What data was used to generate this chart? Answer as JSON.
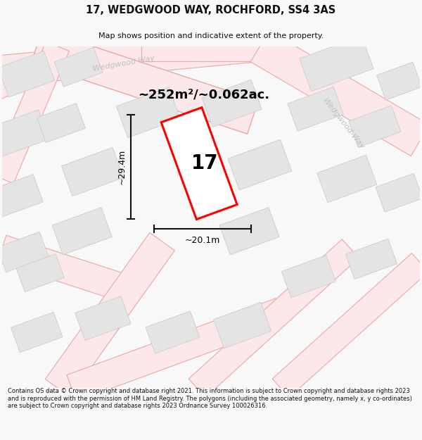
{
  "title": "17, WEDGWOOD WAY, ROCHFORD, SS4 3AS",
  "subtitle": "Map shows position and indicative extent of the property.",
  "area_text": "~252m²/~0.062ac.",
  "width_label": "~20.1m",
  "height_label": "~29.4m",
  "number_label": "17",
  "footer_text": "Contains OS data © Crown copyright and database right 2021. This information is subject to Crown copyright and database rights 2023 and is reproduced with the permission of HM Land Registry. The polygons (including the associated geometry, namely x, y co-ordinates) are subject to Crown copyright and database rights 2023 Ordnance Survey 100026316.",
  "bg_color": "#f8f8f8",
  "map_bg": "#ffffff",
  "road_fill": "#fce8e8",
  "road_edge": "#e8a8a8",
  "block_fill": "#e4e4e4",
  "block_edge": "#cccccc",
  "plot_color": "#ff0000",
  "street_color": "#c0c0c0",
  "dim_color": "#111111",
  "title_color": "#111111",
  "footer_color": "#111111"
}
